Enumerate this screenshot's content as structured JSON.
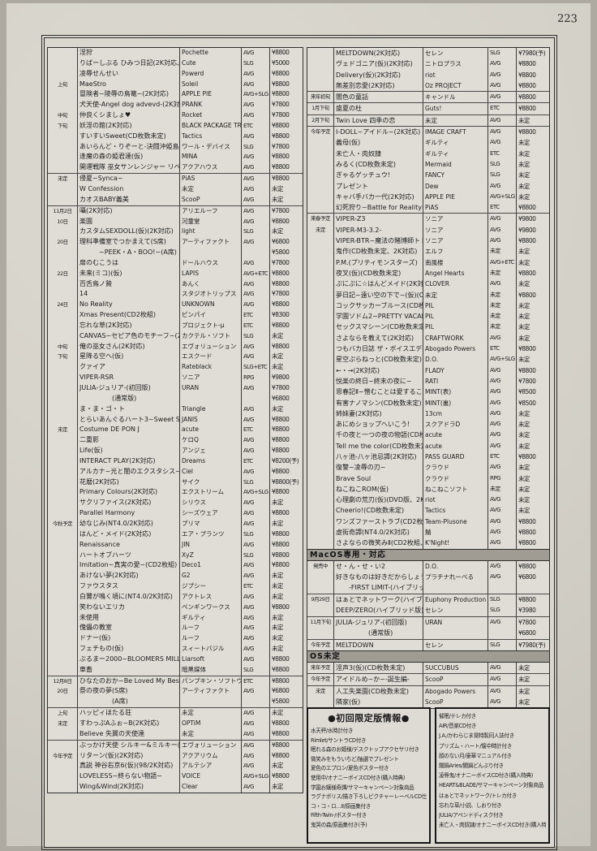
{
  "page": {
    "number": "223"
  },
  "left_table": {
    "rows": [
      {
        "d": "",
        "t": "淫狩",
        "b": "Pochette",
        "g": "AVG",
        "p": "¥8800"
      },
      {
        "d": "",
        "t": "りばーしぶる ひみつ日記(2K対応、通販専用)",
        "b": "Cute",
        "g": "SLG",
        "p": "¥5000"
      },
      {
        "d": "",
        "t": "凌辱せんせい",
        "b": "Powerd",
        "g": "AVG",
        "p": "¥8800"
      },
      {
        "d": "上旬",
        "t": "MaeStro",
        "b": "Soleil",
        "g": "AVG",
        "p": "¥8800"
      },
      {
        "d": "",
        "t": "冒険者~陵辱の鳥篭~(2K対応)",
        "b": "APPLE PIE",
        "g": "AVG+SLG",
        "p": "¥8800"
      },
      {
        "d": "",
        "t": "犬天使-Angel dog advevd-(2K対応)",
        "b": "PRANK",
        "g": "AVG",
        "p": "¥7800"
      },
      {
        "d": "中旬",
        "t": "仲良くシましょ♥",
        "b": "Rocket",
        "g": "AVG",
        "p": "¥7800"
      },
      {
        "d": "下旬",
        "t": "妖淫の館(2K対応)",
        "b": "BLACK PACKAGE TRY",
        "g": "ETC",
        "p": "¥8800"
      },
      {
        "d": "",
        "t": "すいすいSweet(CD枚数未定)",
        "b": "Tactics",
        "g": "AVG",
        "p": "¥8800"
      },
      {
        "d": "",
        "t": "あいらんど・りぞーと-決闘沖姫島分校-",
        "b": "ワール・デバイス",
        "g": "SLG",
        "p": "¥7800"
      },
      {
        "d": "",
        "t": "逢魔の森の姫君達(仮)",
        "b": "MINA",
        "g": "AVG",
        "p": "¥8800"
      },
      {
        "d": "",
        "t": "開運戦隊 巫女サンレンジャー リベンジ",
        "b": "アクアハウス",
        "g": "AVG",
        "p": "¥8800"
      },
      {
        "d": "未定",
        "t": "侵夏~Synca~",
        "b": "PiAS",
        "g": "AVG",
        "p": "¥8800",
        "s": true
      },
      {
        "d": "",
        "t": "W Confession",
        "b": "未定",
        "g": "AVG",
        "p": "未定"
      },
      {
        "d": "",
        "t": "カオスBABY義美",
        "b": "ScooP",
        "g": "AVG",
        "p": "未定"
      },
      {
        "d": "11月2日",
        "t": "囁(2K対応)",
        "b": "アリエルーフ",
        "g": "AVG",
        "p": "¥7800",
        "s": true
      },
      {
        "d": "10日",
        "t": "楽園",
        "b": "河童堂",
        "g": "AVG",
        "p": "¥8800"
      },
      {
        "d": "",
        "t": "カスタムSEXDOLL(仮)(2K対応)",
        "b": "light",
        "g": "SLG",
        "p": "未定"
      },
      {
        "d": "20日",
        "t": "理科準備室でつかまえて(S席)",
        "b": "アーティファクト",
        "g": "AVG",
        "p": "¥6800"
      },
      {
        "d": "",
        "t": "　　　~PEEK・A・BOO!~(A席)",
        "b": "",
        "g": "",
        "p": "¥5800"
      },
      {
        "d": "",
        "t": "扉のむこうは",
        "b": "ドールハウス",
        "g": "AVG",
        "p": "¥7800"
      },
      {
        "d": "22日",
        "t": "未来(ミコ)(仮)",
        "b": "LAPIS",
        "g": "AVG+ETC",
        "p": "¥8800"
      },
      {
        "d": "",
        "t": "百舌鳥ノ贄",
        "b": "あんく",
        "g": "AVG",
        "p": "¥8800"
      },
      {
        "d": "",
        "t": "14",
        "b": "スタジオトリップス",
        "g": "AVG",
        "p": "¥7800"
      },
      {
        "d": "24日",
        "t": "No Reality",
        "b": "UNKNOWN",
        "g": "AVG",
        "p": "¥8800"
      },
      {
        "d": "",
        "t": "Xmas Present(CD2枚組)",
        "b": "ピンパイ",
        "g": "ETC",
        "p": "¥8300"
      },
      {
        "d": "",
        "t": "忘れな草(2K対応)",
        "b": "プロジェクト-μ",
        "g": "ETC",
        "p": "¥8800"
      },
      {
        "d": "",
        "t": "CANVAS~セピア色のモチーフ~(2K対応)",
        "b": "カクテル・ソフト",
        "g": "SLG",
        "p": "未定"
      },
      {
        "d": "中旬",
        "t": "俺の巫女さん(2K対応)",
        "b": "エヴォリューション",
        "g": "AVG",
        "p": "¥8800"
      },
      {
        "d": "下旬",
        "t": "星降る空へ(仮)",
        "b": "エスクード",
        "g": "AVG",
        "p": "未定"
      },
      {
        "d": "",
        "t": "クァイア",
        "b": "Rateblack",
        "g": "SLG+ETC",
        "p": "未定"
      },
      {
        "d": "",
        "t": "VIPER-RSR",
        "b": "ソニア",
        "g": "RPG",
        "p": "¥9800"
      },
      {
        "d": "",
        "t": "JULIA-ジュリア-(初回版)",
        "b": "URAN",
        "g": "AVG",
        "p": "¥7800"
      },
      {
        "d": "",
        "t": "　　　　　(通常版)",
        "b": "",
        "g": "",
        "p": "¥6800"
      },
      {
        "d": "",
        "t": "ま・ま・ゴ・ト",
        "b": "Triangle",
        "g": "AVG",
        "p": "未定"
      },
      {
        "d": "",
        "t": "とらいあんぐるハート3~Sweet Songs Forever~",
        "b": "JANIS",
        "g": "AVG",
        "p": "¥8800"
      },
      {
        "d": "未定",
        "t": "Costume DE PON J",
        "b": "acute",
        "g": "ETC",
        "p": "¥8800"
      },
      {
        "d": "",
        "t": "二重影",
        "b": "ケロQ",
        "g": "AVG",
        "p": "¥8800"
      },
      {
        "d": "",
        "t": "Life(仮)",
        "b": "アンジェ",
        "g": "AVG",
        "p": "¥8800"
      },
      {
        "d": "",
        "t": "INTERACT PLAY(2K対応)",
        "b": "Dreams",
        "g": "ETC",
        "p": "¥8200(予)"
      },
      {
        "d": "",
        "t": "アルカナ~光と闇のエクスタシス~",
        "b": "Ciel",
        "g": "AVG",
        "p": "¥8800"
      },
      {
        "d": "",
        "t": "花暦(2K対応)",
        "b": "サイク",
        "g": "SLG",
        "p": "¥8800(予)"
      },
      {
        "d": "",
        "t": "Primary Colours(2K対応)",
        "b": "エクストリーム",
        "g": "AVG+SLG",
        "p": "¥8800"
      },
      {
        "d": "",
        "t": "サクリファイス(2K対応)",
        "b": "シリウス",
        "g": "AVG",
        "p": "未定"
      },
      {
        "d": "",
        "t": "Parallel Harmony",
        "b": "シーズウェア",
        "g": "AVG",
        "p": "¥8800"
      },
      {
        "d": "今秋予定",
        "t": "幼なじみ(NT4.0/2K対応)",
        "b": "プリマ",
        "g": "AVG",
        "p": "未定"
      },
      {
        "d": "",
        "t": "はんど・メイド(2K対応)",
        "b": "エア・プランツ",
        "g": "SLG",
        "p": "¥8800"
      },
      {
        "d": "",
        "t": "Renaissance",
        "b": "JIN",
        "g": "AVG",
        "p": "¥8800"
      },
      {
        "d": "",
        "t": "ハートオブハーツ",
        "b": "XyZ",
        "g": "SLG",
        "p": "¥8800"
      },
      {
        "d": "",
        "t": "Imitation~真実の愛~(CD2枚組)",
        "b": "Deco1",
        "g": "AVG",
        "p": "¥8800"
      },
      {
        "d": "",
        "t": "あけない夢(2K対応)",
        "b": "G2",
        "g": "AVG",
        "p": "未定"
      },
      {
        "d": "",
        "t": "ファウスタス",
        "b": "ジプシー",
        "g": "ETC",
        "p": "未定"
      },
      {
        "d": "",
        "t": "白鷺が鳴く頃に(NT4.0/2K対応)",
        "b": "アクトレス",
        "g": "AVG",
        "p": "未定"
      },
      {
        "d": "",
        "t": "笑わないエリカ",
        "b": "ペンギンワークス",
        "g": "AVG",
        "p": "¥8800"
      },
      {
        "d": "",
        "t": "未使用",
        "b": "ギルティ",
        "g": "AVG",
        "p": "未定"
      },
      {
        "d": "",
        "t": "傀儡の教室",
        "b": "ルーフ",
        "g": "AVG",
        "p": "未定"
      },
      {
        "d": "",
        "t": "ドナー(仮)",
        "b": "ルーフ",
        "g": "AVG",
        "p": "未定"
      },
      {
        "d": "",
        "t": "フェチもの(仮)",
        "b": "スィートバジル",
        "g": "AVG",
        "p": "未定"
      },
      {
        "d": "",
        "t": "ぶるまー2000~BLOOMERS MILLENNIUM~",
        "b": "Liarsoft",
        "g": "AVG",
        "p": "¥8800"
      },
      {
        "d": "",
        "t": "車畜",
        "b": "暗黒媒体",
        "g": "SLG",
        "p": "¥8800"
      },
      {
        "d": "12月8日",
        "t": "ひなたのおか~Be Loved My Best Half~",
        "b": "パンプキン・ソフトウェア",
        "g": "ETC",
        "p": "¥8800",
        "s": true
      },
      {
        "d": "20日",
        "t": "祭の夜の夢(S席)",
        "b": "アーティファクト",
        "g": "AVG",
        "p": "¥6800"
      },
      {
        "d": "",
        "t": "　　　　　(A席)",
        "b": "",
        "g": "",
        "p": "¥5800"
      },
      {
        "d": "上旬",
        "t": "ハッピィほたる荘",
        "b": "未定",
        "g": "AVG",
        "p": "未定",
        "s": true
      },
      {
        "d": "未定",
        "t": "すわっぷAふぉ~B(2K対応)",
        "b": "OPTiM",
        "g": "AVG",
        "p": "¥8800"
      },
      {
        "d": "",
        "t": "Believe 失翼の天使達",
        "b": "未定",
        "g": "AVG",
        "p": "¥8800"
      },
      {
        "d": "",
        "t": "ぶっかけ天使 シルキー&ミルキー(2K対応)",
        "b": "エヴォリューション",
        "g": "AVG",
        "p": "¥8800",
        "s": true
      },
      {
        "d": "今年予定",
        "t": "リターン(仮)(2K対応)",
        "b": "アクアリウム",
        "g": "AVG",
        "p": "¥8800"
      },
      {
        "d": "",
        "t": "真説 神谷右京6(仮)(98/2K対応)",
        "b": "アルテシア",
        "g": "AVG",
        "p": "未定"
      },
      {
        "d": "",
        "t": "LOVELESS~終らない物語~",
        "b": "VOICE",
        "g": "AVG+SLG",
        "p": "¥8800"
      },
      {
        "d": "",
        "t": "Wing&Wind(2K対応)",
        "b": "Clear",
        "g": "AVG",
        "p": "未定"
      }
    ]
  },
  "right_table": {
    "rows": [
      {
        "d": "",
        "t": "MELTDOWN(2K対応)",
        "b": "セレン",
        "g": "SLG",
        "p": "¥7980(予)"
      },
      {
        "d": "",
        "t": "ヴェドゴニア(仮)(2K対応)",
        "b": "ニトロプラス",
        "g": "AVG",
        "p": "¥8800"
      },
      {
        "d": "",
        "t": "Delivery(仮)(2K対応)",
        "b": "riot",
        "g": "AVG",
        "p": "¥8800"
      },
      {
        "d": "",
        "t": "無差別恋愛(2K対応)",
        "b": "Oz PROJECT",
        "g": "AVG",
        "p": "¥8800"
      },
      {
        "d": "来年初旬",
        "t": "闇色の童話",
        "b": "キャンドル",
        "g": "AVG",
        "p": "¥8800",
        "s": true
      },
      {
        "d": "1月下旬",
        "t": "盛夏の杜",
        "b": "Guts!",
        "g": "ETC",
        "p": "¥8800",
        "s": true
      },
      {
        "d": "2月下旬",
        "t": "Twin Love 四季の恋",
        "b": "未定",
        "g": "AVG",
        "p": "未定",
        "s": true
      },
      {
        "d": "今年予定",
        "t": "I-DOLL~アイドル~(2K対応)",
        "b": "IMAGE CRAFT",
        "g": "AVG",
        "p": "¥8800",
        "s": true
      },
      {
        "d": "",
        "t": "義母(仮)",
        "b": "ギルティ",
        "g": "AVG",
        "p": "未定"
      },
      {
        "d": "",
        "t": "未亡人・肉奴隷",
        "b": "ギルティ",
        "g": "ETC",
        "p": "未定"
      },
      {
        "d": "",
        "t": "みるく(CD枚数未定)",
        "b": "Mermaid",
        "g": "SLG",
        "p": "未定"
      },
      {
        "d": "",
        "t": "ぎゃるゲッチュウ!",
        "b": "FANCY",
        "g": "SLG",
        "p": "未定"
      },
      {
        "d": "",
        "t": "プレゼント",
        "b": "Dew",
        "g": "AVG",
        "p": "未定"
      },
      {
        "d": "",
        "t": "キャバ手バカ一代(2K対応)",
        "b": "APPLE PIE",
        "g": "AVG+SLG",
        "p": "未定"
      },
      {
        "d": "",
        "t": "幻死狩り~Battle for Reality~(2K対応)",
        "b": "PiAS",
        "g": "ETC",
        "p": "¥8800"
      },
      {
        "d": "来春予定",
        "t": "VIPER-Z3",
        "b": "ソニア",
        "g": "AVG",
        "p": "¥9800",
        "s": true
      },
      {
        "d": "未定",
        "t": "VIPER-M3-3.2-",
        "b": "ソニア",
        "g": "AVG",
        "p": "¥9800"
      },
      {
        "d": "",
        "t": "VIPER-BTR~魔法の賭博師トトカル☆チョミ~",
        "b": "ソニア",
        "g": "AVG",
        "p": "¥8800"
      },
      {
        "d": "",
        "t": "鬼作(CD枚数未定、2K対応)",
        "b": "エルフ",
        "g": "未定",
        "p": "未定"
      },
      {
        "d": "",
        "t": "P.M.(プリティモンスターズ)",
        "b": "南風楼",
        "g": "AVG+ETC",
        "p": "未定"
      },
      {
        "d": "",
        "t": "夜叉(仮)(CD枚数未定)",
        "b": "Angel Hearts",
        "g": "未定",
        "p": "¥8800"
      },
      {
        "d": "",
        "t": "ぷにぷに☆はんどメイド(2K対応)",
        "b": "CLOVER",
        "g": "AVG",
        "p": "未定"
      },
      {
        "d": "",
        "t": "夢日記~遠い空の下で~(仮)(CD枚数未定)",
        "b": "未定",
        "g": "未定",
        "p": "¥8800"
      },
      {
        "d": "",
        "t": "コックサッカーブルース(CD枚数未定)",
        "b": "PIL",
        "g": "未定",
        "p": "未定"
      },
      {
        "d": "",
        "t": "学園ソドム2~PRETTY VACANT~(CD枚数未定)",
        "b": "PIL",
        "g": "未定",
        "p": "未定"
      },
      {
        "d": "",
        "t": "セックスマシーン(CD枚数未定)",
        "b": "PIL",
        "g": "未定",
        "p": "未定"
      },
      {
        "d": "",
        "t": "さよならを教えて(2K対応)",
        "b": "CRAFTWORK",
        "g": "AVG",
        "p": "未定"
      },
      {
        "d": "",
        "t": "つもバカ日誌 ザ・ボイスエディション(CD枚数未定)",
        "b": "Abogado Powers",
        "g": "ETC",
        "p": "¥8800"
      },
      {
        "d": "",
        "t": "星空ぷらねっと(CD枚数未定)",
        "b": "D.O.",
        "g": "AVG+SLG",
        "p": "未定"
      },
      {
        "d": "",
        "t": "←・→(2K対応)",
        "b": "FLADY",
        "g": "AVG",
        "p": "¥8800"
      },
      {
        "d": "",
        "t": "悦楽の終日~終末の夜に~",
        "b": "RATI",
        "g": "AVG",
        "p": "¥7800"
      },
      {
        "d": "",
        "t": "思春記Ⅱ~憎むことは愛することHATE LOVE~(CD枚数未定)",
        "b": "MINT(表)",
        "g": "AVG",
        "p": "¥8500"
      },
      {
        "d": "",
        "t": "有害ナノマシン(CD枚数未定)",
        "b": "MINT(裏)",
        "g": "AVG",
        "p": "¥8500"
      },
      {
        "d": "",
        "t": "姉妹妻(2K対応)",
        "b": "13cm",
        "g": "AVG",
        "p": "未定"
      },
      {
        "d": "",
        "t": "あにめショップへいこう!",
        "b": "スクアドラD",
        "g": "AVG",
        "p": "未定"
      },
      {
        "d": "",
        "t": "千の夜と一つの夜の物語(CD枚数未定)",
        "b": "acute",
        "g": "AVG",
        "p": "未定"
      },
      {
        "d": "",
        "t": "Tell me the color(CD枚数未定)",
        "b": "acute",
        "g": "AVG",
        "p": "未定"
      },
      {
        "d": "",
        "t": "八ヶ池-八ヶ池忌譚(2K対応)",
        "b": "PASS GUARD",
        "g": "ETC",
        "p": "¥8800"
      },
      {
        "d": "",
        "t": "復讐~凌辱の刃~",
        "b": "クラウド",
        "g": "AVG",
        "p": "未定"
      },
      {
        "d": "",
        "t": "Brave Soul",
        "b": "クラウド",
        "g": "RPG",
        "p": "未定"
      },
      {
        "d": "",
        "t": "ねこねこROM(仮)",
        "b": "ねこねこソフト",
        "g": "未定",
        "p": "未定"
      },
      {
        "d": "",
        "t": "心理劇の荒刃(仮)(DVD版、2K対応)",
        "b": "riot",
        "g": "AVG",
        "p": "未定"
      },
      {
        "d": "",
        "t": "Cheerio!(CD枚数未定)",
        "b": "Tactics",
        "g": "AVG",
        "p": "未定"
      },
      {
        "d": "",
        "t": "ワンズファーストラブ(CD2枚組)",
        "b": "Team-Plusone",
        "g": "AVG",
        "p": "¥8800"
      },
      {
        "d": "",
        "t": "虚街奇譚(NT4.0/2K対応)",
        "b": "鯖",
        "g": "AVG",
        "p": "¥8800"
      },
      {
        "d": "",
        "t": "さよならの微笑みⅡ(CD2枚組、2K対応)",
        "b": "K'Night!",
        "g": "AVG",
        "p": "¥8800"
      }
    ],
    "macos_header": "MacOS専用・対応",
    "macos_rows": [
      {
        "d": "発売中",
        "t": "せ・ん・せ・い2",
        "b": "D.O.",
        "g": "AVG",
        "p": "¥8800"
      },
      {
        "d": "",
        "t": "好きなものは好きだからしょうがない!!",
        "b": "プラチナれーべる",
        "g": "AVG",
        "p": "¥6800"
      },
      {
        "d": "",
        "t": "　　-FIRST LIMIT-(ハイブリッド版)",
        "b": "",
        "g": "",
        "p": ""
      },
      {
        "d": "9月29日",
        "t": "はぁとでネットワーク(ハイブリッド版、CD3枚組)",
        "b": "Euphony Production",
        "g": "SLG",
        "p": "¥8800",
        "s": true
      },
      {
        "d": "",
        "t": "DEEP/ZERO(ハイブリッド版)",
        "b": "セレン",
        "g": "SLG",
        "p": "¥3980"
      },
      {
        "d": "11月下旬",
        "t": "JULIA-ジュリア-(初回版)",
        "b": "URAN",
        "g": "AVG",
        "p": "¥7800",
        "s": true
      },
      {
        "d": "",
        "t": "　　　　　(通常版)",
        "b": "",
        "g": "",
        "p": "¥6800"
      },
      {
        "d": "今年予定",
        "t": "MELTDOWN",
        "b": "セレン",
        "g": "SLG",
        "p": "¥7980(予)",
        "s": true
      }
    ],
    "os_header": "OS未定",
    "os_rows": [
      {
        "d": "来年予定",
        "t": "淫声3(仮)(CD枚数未定)",
        "b": "SUCCUBUS",
        "g": "AVG",
        "p": "未定"
      },
      {
        "d": "今年予定",
        "t": "アイドルめ~か~-誕生編-",
        "b": "ScooP",
        "g": "AVG",
        "p": "未定",
        "s": true
      },
      {
        "d": "未定",
        "t": "人工失楽園(CD枚数未定)",
        "b": "Abogado Powers",
        "g": "AVG",
        "p": "未定",
        "s": true
      },
      {
        "d": "",
        "t": "隣家(仮)",
        "b": "ScooP",
        "g": "AVG",
        "p": "未定"
      }
    ]
  },
  "limited_box": {
    "title": "●初回限定版情報●",
    "items": [
      "水天秤/水時計付き",
      "Rimlet/サントラCD付き",
      "眠れる森のお姫様/デスクトップアクセサリ付き",
      "微笑みをもういちど/抽選でプレゼント",
      "夏色のエプロン/夏色ポスター付き",
      "使用中/オナニーボイスCD付き(購入特典)",
      "学園お嬢様奇譚/サマーキャンペーン対象商品",
      "ラグナポリス/描き下ろしピクチャーレーベルCD仕様",
      "コ・コ・ロ…Ⅱ/原画集付き",
      "Fifth-Twin-/ポスター付き",
      "鬼哭の森/原画集付き(予)"
    ]
  },
  "notes_box": {
    "items": [
      "催眠/テレカ付き",
      "AIR/音楽CD付き",
      "J.A./かわらじま晃特製同人誌付き",
      "プリズム・ハート/懐中時計付き",
      "顔のない月/豪華マニュアル付き",
      "闇鍋Aries/闇鍋どんぶり付き",
      "凌辱鬼/オナニーボイスCD付き(購入特典)",
      "HEART&BLADE/サマーキャンペーン対象商品",
      "はぁとでネットワーク/トレカ付き",
      "忘れな草/小説、しおり付き",
      "JULIA/アペンドディスク付き",
      "未亡人・肉奴隷/オナニーボイスCD付き(購入特典)"
    ]
  }
}
